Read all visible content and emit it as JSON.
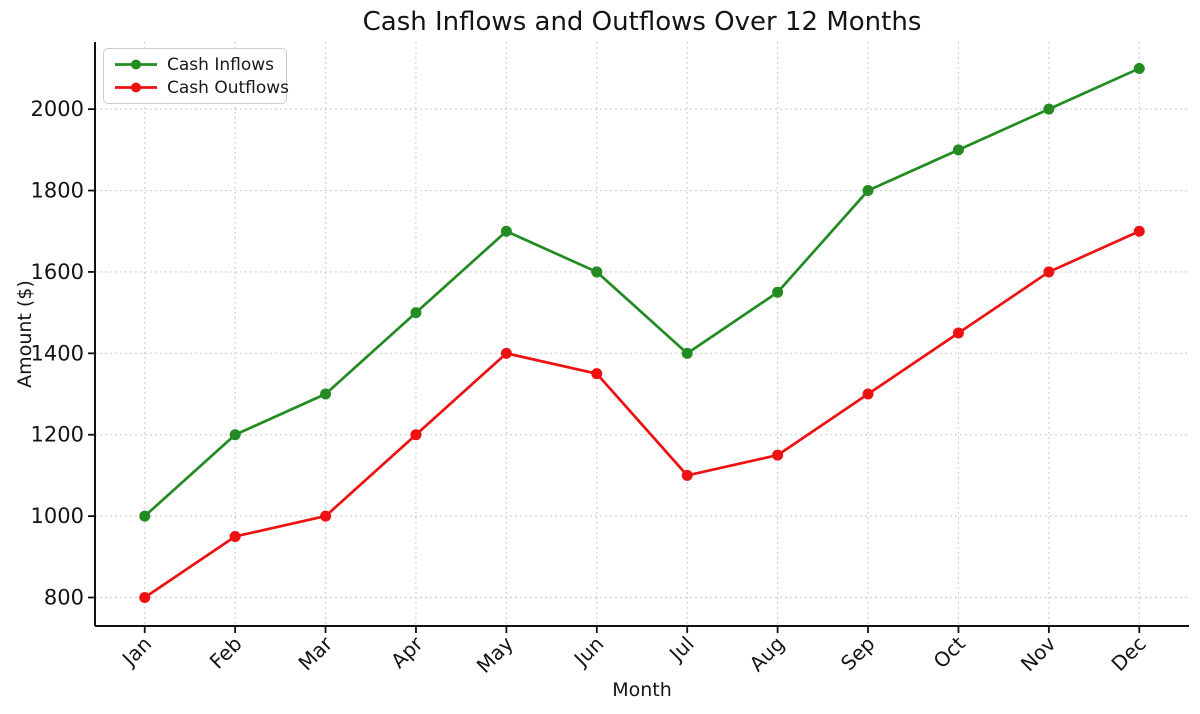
{
  "chart_data": {
    "type": "line",
    "title": "Cash Inflows and Outflows Over 12 Months",
    "xlabel": "Month",
    "ylabel": "Amount ($)",
    "categories": [
      "Jan",
      "Feb",
      "Mar",
      "Apr",
      "May",
      "Jun",
      "Jul",
      "Aug",
      "Sep",
      "Oct",
      "Nov",
      "Dec"
    ],
    "series": [
      {
        "name": "Cash Inflows",
        "color": "#228B22",
        "values": [
          1000,
          1200,
          1300,
          1500,
          1700,
          1600,
          1400,
          1550,
          1800,
          1900,
          2000,
          2100
        ]
      },
      {
        "name": "Cash Outflows",
        "color": "#ee1111",
        "values": [
          800,
          950,
          1000,
          1200,
          1400,
          1350,
          1100,
          1150,
          1300,
          1450,
          1600,
          1700
        ]
      }
    ],
    "yticks": [
      800,
      1000,
      1200,
      1400,
      1600,
      1800,
      2000
    ],
    "ylim": [
      730,
      2165
    ],
    "grid": true,
    "grid_style": "dotted",
    "legend_position": "upper left",
    "marker": "circle",
    "background": "#ffffff",
    "grid_color": "#cbcbcb",
    "axis_color": "#111111"
  }
}
